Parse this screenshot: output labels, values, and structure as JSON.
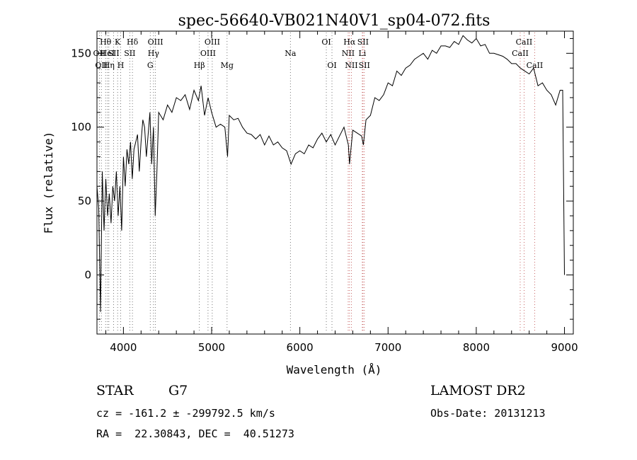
{
  "chart_data": {
    "type": "line",
    "title": "spec-56640-VB021N40V1_sp04-072.fits",
    "xlabel": "Wavelength (Å)",
    "ylabel": "Flux (relative)",
    "xlim": [
      3700,
      9100
    ],
    "ylim": [
      -40,
      165
    ],
    "xticks": [
      4000,
      5000,
      6000,
      7000,
      8000,
      9000
    ],
    "yticks": [
      0,
      50,
      100,
      150
    ],
    "grid": false,
    "series": [
      {
        "x": [
          3700,
          3720,
          3740,
          3760,
          3780,
          3800,
          3820,
          3840,
          3860,
          3880,
          3900,
          3920,
          3940,
          3960,
          3980,
          4000,
          4020,
          4040,
          4060,
          4080,
          4100,
          4120,
          4140,
          4160,
          4180,
          4200,
          4220,
          4240,
          4260,
          4280,
          4300,
          4320,
          4340,
          4360,
          4380,
          4400,
          4450,
          4500,
          4550,
          4600,
          4650,
          4700,
          4750,
          4800,
          4850,
          4880,
          4920,
          4960,
          5000,
          5050,
          5100,
          5150,
          5180,
          5200,
          5250,
          5300,
          5350,
          5400,
          5450,
          5500,
          5550,
          5600,
          5650,
          5700,
          5750,
          5800,
          5850,
          5900,
          5950,
          6000,
          6050,
          6100,
          6150,
          6200,
          6250,
          6300,
          6350,
          6400,
          6450,
          6500,
          6550,
          6563,
          6600,
          6650,
          6700,
          6720,
          6750,
          6800,
          6850,
          6900,
          6950,
          7000,
          7050,
          7100,
          7150,
          7200,
          7250,
          7300,
          7350,
          7400,
          7450,
          7500,
          7550,
          7600,
          7650,
          7700,
          7750,
          7800,
          7850,
          7900,
          7950,
          8000,
          8050,
          8100,
          8150,
          8200,
          8250,
          8300,
          8350,
          8400,
          8450,
          8500,
          8550,
          8600,
          8650,
          8700,
          8750,
          8800,
          8850,
          8900,
          8950,
          8980,
          9000
        ],
        "y": [
          60,
          45,
          -25,
          70,
          30,
          65,
          40,
          55,
          35,
          60,
          50,
          70,
          40,
          60,
          30,
          80,
          60,
          85,
          75,
          90,
          65,
          85,
          90,
          95,
          70,
          90,
          105,
          100,
          80,
          95,
          110,
          75,
          100,
          40,
          70,
          110,
          105,
          115,
          110,
          120,
          118,
          122,
          112,
          125,
          118,
          128,
          108,
          120,
          110,
          100,
          102,
          100,
          80,
          108,
          105,
          106,
          100,
          96,
          95,
          92,
          95,
          88,
          94,
          88,
          90,
          86,
          84,
          75,
          82,
          84,
          82,
          88,
          86,
          92,
          96,
          90,
          95,
          88,
          94,
          100,
          88,
          75,
          98,
          96,
          94,
          88,
          105,
          108,
          120,
          118,
          122,
          130,
          128,
          138,
          135,
          140,
          142,
          146,
          148,
          150,
          146,
          152,
          150,
          155,
          155,
          154,
          158,
          156,
          162,
          159,
          157,
          160,
          155,
          156,
          150,
          150,
          149,
          148,
          146,
          143,
          143,
          140,
          138,
          136,
          140,
          128,
          130,
          125,
          122,
          115,
          125,
          125,
          0
        ]
      }
    ],
    "line_labels": [
      {
        "x": 3727,
        "row": 1,
        "text": "OII"
      },
      {
        "x": 3750,
        "row": 2,
        "text": "OII"
      },
      {
        "x": 3798,
        "row": 0,
        "text": "Hθ"
      },
      {
        "x": 3835,
        "row": 2,
        "text": "Hη"
      },
      {
        "x": 3820,
        "row": 1,
        "text": "HeI"
      },
      {
        "x": 3889,
        "row": 1,
        "text": "SII"
      },
      {
        "x": 3934,
        "row": 0,
        "text": "K"
      },
      {
        "x": 3969,
        "row": 2,
        "text": "H"
      },
      {
        "x": 4102,
        "row": 0,
        "text": "Hδ"
      },
      {
        "x": 4072,
        "row": 1,
        "text": "SII"
      },
      {
        "x": 4363,
        "row": 0,
        "text": "OIII"
      },
      {
        "x": 4341,
        "row": 1,
        "text": "Hγ"
      },
      {
        "x": 4304,
        "row": 2,
        "text": "G"
      },
      {
        "x": 4861,
        "row": 2,
        "text": "Hβ"
      },
      {
        "x": 5007,
        "row": 0,
        "text": "OIII"
      },
      {
        "x": 4959,
        "row": 1,
        "text": "OIII"
      },
      {
        "x": 5175,
        "row": 2,
        "text": "Mg"
      },
      {
        "x": 5893,
        "row": 1,
        "text": "Na"
      },
      {
        "x": 6300,
        "row": 0,
        "text": "OI"
      },
      {
        "x": 6364,
        "row": 2,
        "text": "OI"
      },
      {
        "x": 6563,
        "row": 0,
        "text": "Hα"
      },
      {
        "x": 6548,
        "row": 1,
        "text": "NII"
      },
      {
        "x": 6584,
        "row": 2,
        "text": "NII"
      },
      {
        "x": 6716,
        "row": 0,
        "text": "SII"
      },
      {
        "x": 6708,
        "row": 1,
        "text": "Li"
      },
      {
        "x": 6731,
        "row": 2,
        "text": "SII"
      },
      {
        "x": 8542,
        "row": 0,
        "text": "CaII"
      },
      {
        "x": 8498,
        "row": 1,
        "text": "CaII"
      },
      {
        "x": 8662,
        "row": 2,
        "text": "CaII"
      }
    ]
  },
  "info": {
    "class": "STAR",
    "subclass": "G7",
    "survey": "LAMOST DR2",
    "cz": "cz = -161.2 ± -299792.5 km/s",
    "obs_date": "Obs-Date: 20131213",
    "coords": "RA =  22.30843, DEC =  40.51273"
  }
}
